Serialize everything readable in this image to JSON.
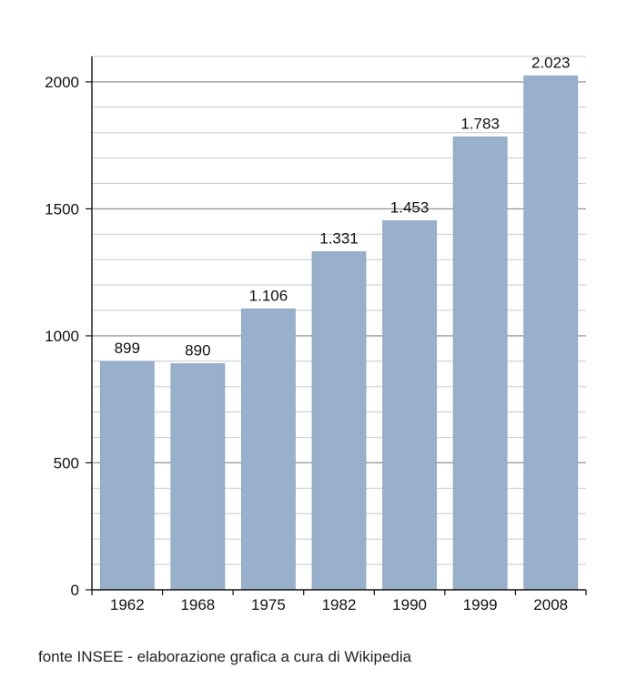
{
  "chart_data": {
    "type": "bar",
    "categories": [
      "1962",
      "1968",
      "1975",
      "1982",
      "1990",
      "1999",
      "2008"
    ],
    "values": [
      899,
      890,
      1106,
      1331,
      1453,
      1783,
      2023
    ],
    "data_labels": [
      "899",
      "890",
      "1.106",
      "1.331",
      "1.453",
      "1.783",
      "2.023"
    ],
    "title": "",
    "xlabel": "",
    "ylabel": "",
    "ylim": [
      0,
      2100
    ],
    "yticks": [
      0,
      500,
      1000,
      1500,
      2000
    ],
    "ytick_labels": [
      "0",
      "500",
      "1000",
      "1500",
      "2000"
    ],
    "minor_grid_step": 100,
    "grid": true,
    "bar_color": "#98b0cb",
    "grid_color": "#c8c8c8",
    "axis_color": "#111111"
  },
  "footer": {
    "source": "fonte INSEE - elaborazione grafica a cura di Wikipedia"
  }
}
